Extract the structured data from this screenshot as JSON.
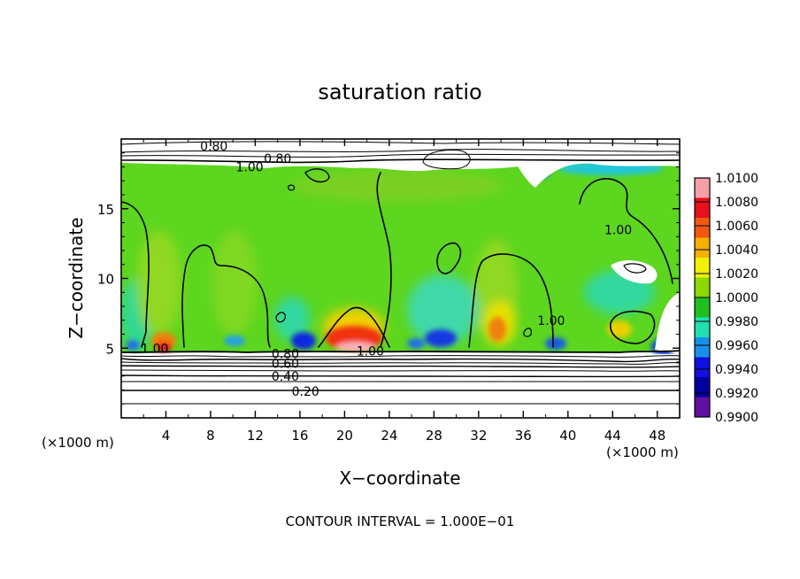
{
  "chart_data": {
    "type": "heatmap",
    "title": "saturation ratio",
    "xlabel": "X−coordinate",
    "ylabel": "Z−coordinate",
    "x_unit_left": "(×1000 m)",
    "x_unit_right": "(×1000 m)",
    "footer": "CONTOUR INTERVAL = 1.000E−01",
    "xlim": [
      0,
      50
    ],
    "ylim": [
      0,
      20
    ],
    "x_ticks": [
      4,
      8,
      12,
      16,
      20,
      24,
      28,
      32,
      36,
      40,
      44,
      48
    ],
    "y_ticks": [
      5,
      10,
      15
    ],
    "colorbar": {
      "range": [
        0.99,
        1.01
      ],
      "labels": [
        "1.0100",
        "1.0080",
        "1.0060",
        "1.0040",
        "1.0020",
        "1.0000",
        "0.9980",
        "0.9960",
        "0.9940",
        "0.9920",
        "0.9900"
      ],
      "colors": [
        "#f4a0a8",
        "#e8101c",
        "#f05a10",
        "#f8b000",
        "#f0f000",
        "#8cd800",
        "#20c020",
        "#20e0b0",
        "#1890e8",
        "#1010e0",
        "#0000a0",
        "#6010a0"
      ]
    },
    "contour_labels": [
      {
        "text": "0.80",
        "x": 8.3,
        "z": 19.5
      },
      {
        "text": "0.80",
        "x": 14.0,
        "z": 18.6
      },
      {
        "text": "1.00",
        "x": 11.5,
        "z": 18.0
      },
      {
        "text": "1.00",
        "x": 3.0,
        "z": 5.0
      },
      {
        "text": "1.00",
        "x": 44.5,
        "z": 13.5
      },
      {
        "text": "1.00",
        "x": 38.5,
        "z": 7.0
      },
      {
        "text": "1.00",
        "x": 22.3,
        "z": 4.8
      },
      {
        "text": "0.80",
        "x": 14.7,
        "z": 4.6
      },
      {
        "text": "0.60",
        "x": 14.7,
        "z": 3.9
      },
      {
        "text": "0.40",
        "x": 14.7,
        "z": 3.0
      },
      {
        "text": "0.20",
        "x": 16.5,
        "z": 1.9
      }
    ]
  }
}
